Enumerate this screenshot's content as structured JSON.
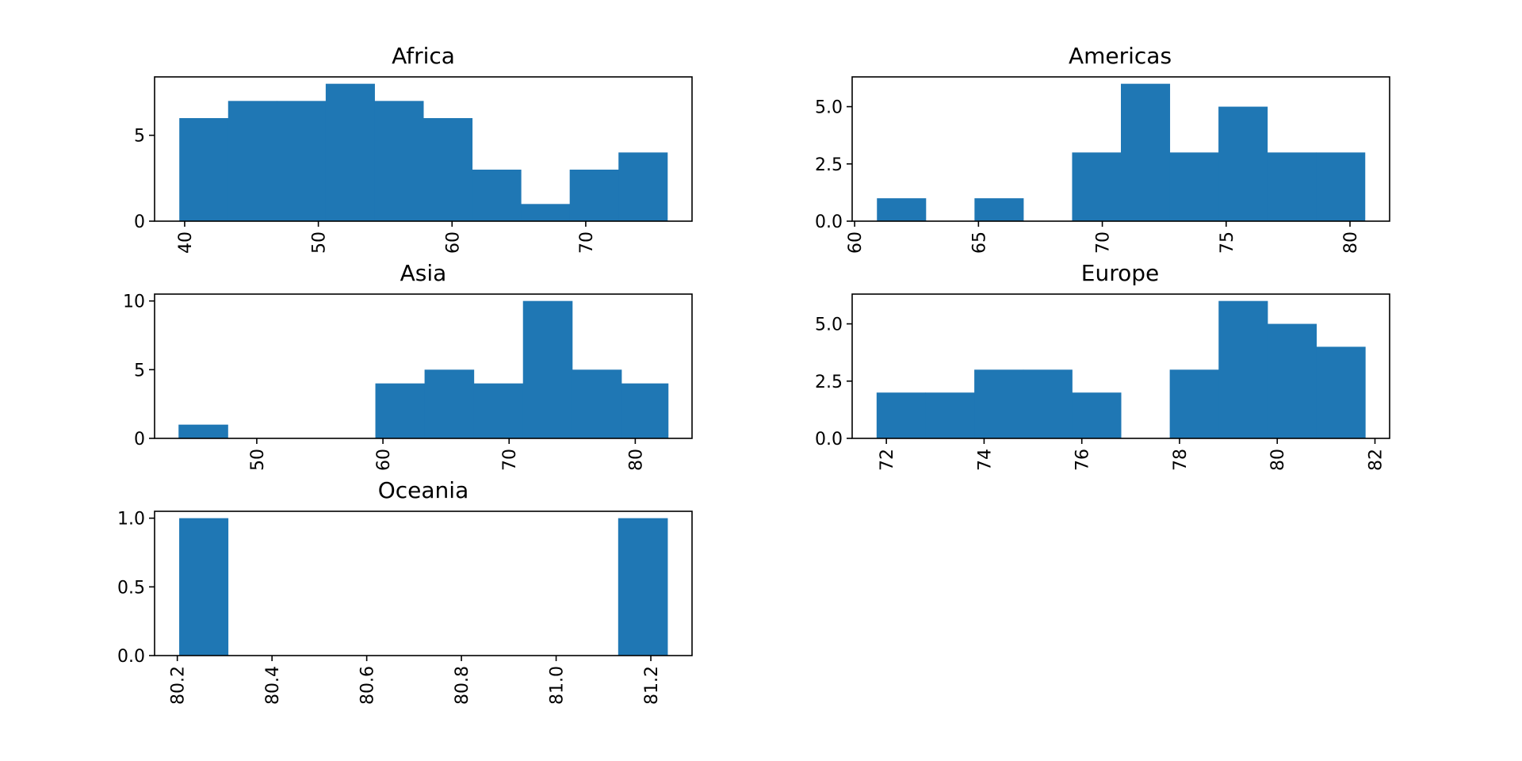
{
  "chart_data": [
    {
      "type": "bar",
      "title": "Africa",
      "bin_edges": [
        39.6,
        43.25,
        46.9,
        50.55,
        54.2,
        57.85,
        61.5,
        65.15,
        68.8,
        72.45,
        76.1
      ],
      "values": [
        6,
        7,
        7,
        8,
        7,
        6,
        3,
        1,
        3,
        4
      ],
      "xlim": [
        37.75,
        77.95
      ],
      "ylim": [
        0,
        8.4
      ],
      "xticks": [
        40,
        50,
        60,
        70
      ],
      "xtick_labels": [
        "40",
        "50",
        "60",
        "70"
      ],
      "yticks": [
        0,
        5
      ],
      "ytick_labels": [
        "0",
        "5"
      ],
      "xlabel": "",
      "ylabel": "",
      "grid": false,
      "color": "#1f77b4"
    },
    {
      "type": "bar",
      "title": "Americas",
      "bin_edges": [
        60.9,
        62.87,
        64.84,
        66.81,
        68.78,
        70.75,
        72.72,
        74.69,
        76.66,
        78.63,
        80.6
      ],
      "values": [
        1,
        0,
        1,
        0,
        3,
        6,
        3,
        5,
        3,
        3
      ],
      "xlim": [
        59.9,
        81.6
      ],
      "ylim": [
        0,
        6.3
      ],
      "xticks": [
        60,
        65,
        70,
        75,
        80
      ],
      "xtick_labels": [
        "60",
        "65",
        "70",
        "75",
        "80"
      ],
      "yticks": [
        0,
        2.5,
        5
      ],
      "ytick_labels": [
        "0.0",
        "2.5",
        "5.0"
      ],
      "xlabel": "",
      "ylabel": "",
      "grid": false,
      "color": "#1f77b4"
    },
    {
      "type": "bar",
      "title": "Asia",
      "bin_edges": [
        43.8,
        47.7,
        51.6,
        55.5,
        59.4,
        63.3,
        67.2,
        71.1,
        75.0,
        78.9,
        82.6
      ],
      "values": [
        1,
        0,
        0,
        0,
        4,
        5,
        4,
        10,
        5,
        4
      ],
      "xlim": [
        41.9,
        84.5
      ],
      "ylim": [
        0,
        10.5
      ],
      "xticks": [
        50,
        60,
        70,
        80
      ],
      "xtick_labels": [
        "50",
        "60",
        "70",
        "80"
      ],
      "yticks": [
        0,
        5,
        10
      ],
      "ytick_labels": [
        "0",
        "5",
        "10"
      ],
      "xlabel": "",
      "ylabel": "",
      "grid": false,
      "color": "#1f77b4"
    },
    {
      "type": "bar",
      "title": "Europe",
      "bin_edges": [
        71.8,
        72.8,
        73.8,
        74.8,
        75.8,
        76.8,
        77.8,
        78.8,
        79.8,
        80.8,
        81.8
      ],
      "values": [
        2,
        2,
        3,
        3,
        2,
        0,
        3,
        6,
        5,
        4
      ],
      "xlim": [
        71.3,
        82.3
      ],
      "ylim": [
        0,
        6.3
      ],
      "xticks": [
        72,
        74,
        76,
        78,
        80,
        82
      ],
      "xtick_labels": [
        "72",
        "74",
        "76",
        "78",
        "80",
        "82"
      ],
      "yticks": [
        0,
        2.5,
        5
      ],
      "ytick_labels": [
        "0.0",
        "2.5",
        "5.0"
      ],
      "xlabel": "",
      "ylabel": "",
      "grid": false,
      "color": "#1f77b4"
    },
    {
      "type": "bar",
      "title": "Oceania",
      "bin_edges": [
        80.204,
        80.307,
        80.41,
        80.513,
        80.616,
        80.719,
        80.822,
        80.925,
        81.028,
        81.131,
        81.235
      ],
      "values": [
        1,
        0,
        0,
        0,
        0,
        0,
        0,
        0,
        0,
        1
      ],
      "xlim": [
        80.152,
        81.287
      ],
      "ylim": [
        0,
        1.05
      ],
      "xticks": [
        80.2,
        80.4,
        80.6,
        80.8,
        81.0,
        81.2
      ],
      "xtick_labels": [
        "80.2",
        "80.4",
        "80.6",
        "80.8",
        "81.0",
        "81.2"
      ],
      "yticks": [
        0,
        0.5,
        1.0
      ],
      "ytick_labels": [
        "0.0",
        "0.5",
        "1.0"
      ],
      "xlabel": "",
      "ylabel": "",
      "grid": false,
      "color": "#1f77b4"
    }
  ]
}
